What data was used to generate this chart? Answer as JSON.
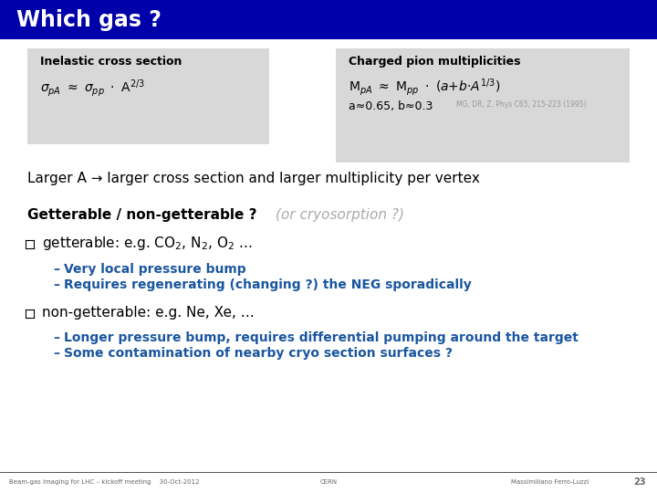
{
  "title": "Which gas ?",
  "title_bg": "#0000aa",
  "title_color": "#ffffff",
  "bg_color": "#ffffff",
  "box_bg": "#d8d8d8",
  "box1_title": "Inelastic cross section",
  "box2_title": "Charged pion multiplicities",
  "box2_sub": "a≈0.65, b≈0.3",
  "box2_ref": "MG, DR, Z. Phys C65, 215-223 (1995)",
  "line1": "Larger A → larger cross section and larger multiplicity per vertex",
  "line2_bold": "Getterable / non-getterable ?",
  "line2_italic": "(or cryosorption ?)",
  "bullet1_text": "getterable: e.g. CO",
  "bullet2_text": "non-getterable: e.g. Ne, Xe, …",
  "sub1_1": "Very local pressure bump",
  "sub1_2": "Requires regenerating (changing ?) the NEG sporadically",
  "sub2_1": "Longer pressure bump, requires differential pumping around the target",
  "sub2_2": "Some contamination of nearby cryo section surfaces ?",
  "blue_color": "#1a56a0",
  "footer_left1": "Beam-gas Imaging for LHC – kickoff meeting",
  "footer_left2": "30-Oct-2012",
  "footer_center": "CERN",
  "footer_right": "Massimiliano Ferro-Luzzi",
  "footer_page": "23",
  "footer_color": "#666666"
}
